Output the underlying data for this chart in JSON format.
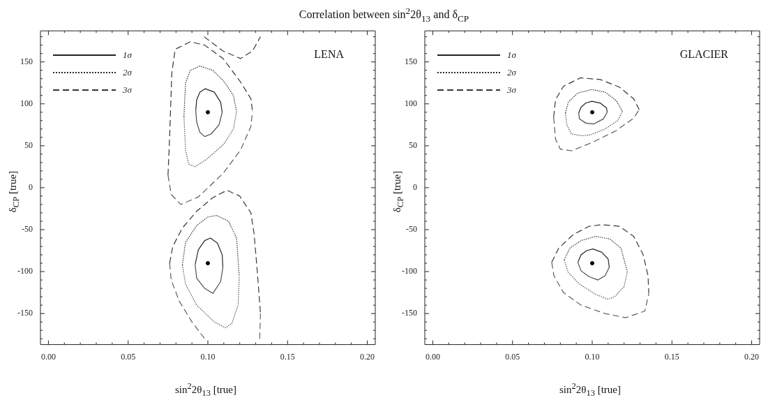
{
  "chart_data": [
    {
      "type": "line",
      "title": "Correlation between sin$^{2}$2θ$_{13}$ and δ$_{CP}$",
      "xlabel": "sin$^{2}$2θ$_{13}$ [true]",
      "ylabel": "δ$_{CP}$ [true]",
      "annotations": [
        "LENA"
      ],
      "legend": "top left",
      "grid": false,
      "xlim": [
        -0.005,
        0.205
      ],
      "ylim": [
        -187,
        187
      ],
      "xticks": [
        {
          "value": 0,
          "label": "0.00"
        },
        {
          "value": 0.01,
          "label": null
        },
        {
          "value": 0.02,
          "label": null
        },
        {
          "value": 0.03,
          "label": null
        },
        {
          "value": 0.04,
          "label": null
        },
        {
          "value": 0.05,
          "label": "0.05"
        },
        {
          "value": 0.06,
          "label": null
        },
        {
          "value": 0.07,
          "label": null
        },
        {
          "value": 0.08,
          "label": null
        },
        {
          "value": 0.09,
          "label": null
        },
        {
          "value": 0.1,
          "label": "0.10"
        },
        {
          "value": 0.11,
          "label": null
        },
        {
          "value": 0.12,
          "label": null
        },
        {
          "value": 0.13,
          "label": null
        },
        {
          "value": 0.14,
          "label": null
        },
        {
          "value": 0.15,
          "label": "0.15"
        },
        {
          "value": 0.16,
          "label": null
        },
        {
          "value": 0.17,
          "label": null
        },
        {
          "value": 0.18,
          "label": null
        },
        {
          "value": 0.19,
          "label": null
        },
        {
          "value": 0.2,
          "label": "0.20"
        }
      ],
      "yticks": [
        {
          "value": -180,
          "label": null
        },
        {
          "value": -170,
          "label": null
        },
        {
          "value": -160,
          "label": null
        },
        -150,
        {
          "value": -140,
          "label": null
        },
        {
          "value": -130,
          "label": null
        },
        {
          "value": -120,
          "label": null
        },
        {
          "value": -110,
          "label": null
        },
        -100,
        {
          "value": -90,
          "label": null
        },
        {
          "value": -80,
          "label": null
        },
        {
          "value": -70,
          "label": null
        },
        {
          "value": -60,
          "label": null
        },
        -50,
        {
          "value": -40,
          "label": null
        },
        {
          "value": -30,
          "label": null
        },
        {
          "value": -20,
          "label": null
        },
        {
          "value": -10,
          "label": null
        },
        0,
        {
          "value": 10,
          "label": null
        },
        {
          "value": 20,
          "label": null
        },
        {
          "value": 30,
          "label": null
        },
        {
          "value": 40,
          "label": null
        },
        50,
        {
          "value": 60,
          "label": null
        },
        {
          "value": 70,
          "label": null
        },
        {
          "value": 80,
          "label": null
        },
        {
          "value": 90,
          "label": null
        },
        100,
        {
          "value": 110,
          "label": null
        },
        {
          "value": 120,
          "label": null
        },
        {
          "value": 130,
          "label": null
        },
        {
          "value": 140,
          "label": null
        },
        150,
        {
          "value": 160,
          "label": null
        },
        {
          "value": 170,
          "label": null
        },
        {
          "value": 180,
          "label": null
        }
      ],
      "series": [
        {
          "name": "1σ",
          "color": "#222222",
          "line_style": "solid",
          "x": [
            0.0924,
            0.093,
            0.095,
            0.0984,
            0.104,
            0.108,
            0.109
          ],
          "values": [
            92,
            105,
            114,
            118,
            114,
            102,
            90
          ]
        },
        {
          "color": "#4a4a4a",
          "line_style": "solid",
          "x": [
            0.0924,
            0.093,
            0.095,
            0.098,
            0.102,
            0.107,
            0.109
          ],
          "values": [
            92,
            78,
            66,
            61,
            64,
            75,
            90
          ]
        },
        {
          "color": "#262626",
          "line_style": "solid",
          "x": [
            0.092,
            0.094,
            0.098,
            0.1016,
            0.106,
            0.109,
            0.1094
          ],
          "values": [
            -92,
            -74,
            -63,
            -60,
            -66,
            -80,
            -95
          ]
        },
        {
          "color": "#4e4e4e",
          "line_style": "solid",
          "x": [
            0.092,
            0.093,
            0.098,
            0.1031,
            0.108,
            0.1094
          ],
          "values": [
            -92,
            -108,
            -120,
            -126,
            -112,
            -95
          ]
        },
        {
          "name": "2σ",
          "color": "#2a2a2a",
          "line_style": "dotted",
          "x": [
            0.085,
            0.086,
            0.089,
            0.095,
            0.103,
            0.11,
            0.116,
            0.118
          ],
          "values": [
            85,
            125,
            140,
            145,
            140,
            127,
            110,
            91
          ]
        },
        {
          "color": "#525252",
          "line_style": "dotted",
          "x": [
            0.085,
            0.086,
            0.088,
            0.092,
            0.1,
            0.11,
            0.116,
            0.118
          ],
          "values": [
            85,
            45,
            28,
            25,
            35,
            52,
            70,
            91
          ]
        },
        {
          "color": "#2e2e2e",
          "line_style": "dotted",
          "x": [
            0.084,
            0.086,
            0.093,
            0.1,
            0.1055,
            0.113,
            0.118,
            0.1197
          ],
          "values": [
            -92,
            -65,
            -45,
            -35,
            -33,
            -40,
            -60,
            -106
          ]
        },
        {
          "color": "#565656",
          "line_style": "dotted",
          "x": [
            0.084,
            0.086,
            0.093,
            0.104,
            0.111,
            0.115,
            0.119,
            0.1197
          ],
          "values": [
            -92,
            -115,
            -140,
            -160,
            -167,
            -162,
            -140,
            -106
          ]
        },
        {
          "name": "3σ",
          "color": "#333333",
          "line_style": "dashed",
          "x": [
            0.075,
            0.076,
            0.0774,
            0.0795,
            0.089,
            0.098,
            0.1095,
            0.1205,
            0.127,
            0.128
          ],
          "values": [
            15,
            60,
            137,
            165,
            174,
            170,
            154,
            126,
            106,
            91
          ]
        },
        {
          "color": "#5b5b5b",
          "line_style": "dashed",
          "x": [
            0.075,
            0.077,
            0.083,
            0.094,
            0.1095,
            0.1205,
            0.127,
            0.128
          ],
          "values": [
            15,
            -8,
            -20,
            -11,
            17,
            45,
            73,
            91
          ]
        },
        {
          "color": "#3a3a3a",
          "line_style": "dashed",
          "x": [
            0.0976,
            0.1095,
            0.1205,
            0.128,
            0.133
          ],
          "values": [
            180,
            163,
            154,
            163,
            180
          ]
        },
        {
          "color": "#5f5f5f",
          "line_style": "dashed",
          "x": [
            0.076,
            0.077,
            0.082,
            0.09,
            0.098
          ],
          "values": [
            -90,
            -110,
            -135,
            -160,
            -180
          ]
        },
        {
          "color": "#373737",
          "line_style": "dashed",
          "x": [
            0.076,
            0.078,
            0.084,
            0.093,
            0.103,
            0.112,
            0.12,
            0.127,
            0.129,
            0.131,
            0.133
          ],
          "values": [
            -90,
            -70,
            -48,
            -28,
            -12,
            -3,
            -10,
            -30,
            -55,
            -100,
            -150
          ]
        },
        {
          "color": "#636363",
          "line_style": "dashed",
          "x": [
            0.1325,
            0.133
          ],
          "values": [
            -180,
            -150
          ]
        },
        {
          "type": "scatter",
          "color": "#000000",
          "marker": "circle",
          "x": [
            0.1,
            0.1
          ],
          "values": [
            90,
            -90
          ]
        }
      ]
    },
    {
      "type": "line",
      "xlabel": "sin$^{2}$2θ$_{13}$ [true]",
      "ylabel": "δ$_{CP}$ [true]",
      "annotations": [
        "GLACIER"
      ],
      "legend": "top left",
      "grid": false,
      "xlim": [
        -0.005,
        0.205
      ],
      "ylim": [
        -187,
        187
      ],
      "xticks": [
        {
          "value": 0,
          "label": "0.00"
        },
        {
          "value": 0.01,
          "label": null
        },
        {
          "value": 0.02,
          "label": null
        },
        {
          "value": 0.03,
          "label": null
        },
        {
          "value": 0.04,
          "label": null
        },
        {
          "value": 0.05,
          "label": "0.05"
        },
        {
          "value": 0.06,
          "label": null
        },
        {
          "value": 0.07,
          "label": null
        },
        {
          "value": 0.08,
          "label": null
        },
        {
          "value": 0.09,
          "label": null
        },
        {
          "value": 0.1,
          "label": "0.10"
        },
        {
          "value": 0.11,
          "label": null
        },
        {
          "value": 0.12,
          "label": null
        },
        {
          "value": 0.13,
          "label": null
        },
        {
          "value": 0.14,
          "label": null
        },
        {
          "value": 0.15,
          "label": "0.15"
        },
        {
          "value": 0.16,
          "label": null
        },
        {
          "value": 0.17,
          "label": null
        },
        {
          "value": 0.18,
          "label": null
        },
        {
          "value": 0.19,
          "label": null
        },
        {
          "value": 0.2,
          "label": "0.20"
        }
      ],
      "yticks": [
        {
          "value": -180,
          "label": null
        },
        {
          "value": -170,
          "label": null
        },
        {
          "value": -160,
          "label": null
        },
        -150,
        {
          "value": -140,
          "label": null
        },
        {
          "value": -130,
          "label": null
        },
        {
          "value": -120,
          "label": null
        },
        {
          "value": -110,
          "label": null
        },
        -100,
        {
          "value": -90,
          "label": null
        },
        {
          "value": -80,
          "label": null
        },
        {
          "value": -70,
          "label": null
        },
        {
          "value": -60,
          "label": null
        },
        -50,
        {
          "value": -40,
          "label": null
        },
        {
          "value": -30,
          "label": null
        },
        {
          "value": -20,
          "label": null
        },
        {
          "value": -10,
          "label": null
        },
        0,
        {
          "value": 10,
          "label": null
        },
        {
          "value": 20,
          "label": null
        },
        {
          "value": 30,
          "label": null
        },
        {
          "value": 40,
          "label": null
        },
        50,
        {
          "value": 60,
          "label": null
        },
        {
          "value": 70,
          "label": null
        },
        {
          "value": 80,
          "label": null
        },
        {
          "value": 90,
          "label": null
        },
        100,
        {
          "value": 110,
          "label": null
        },
        {
          "value": 120,
          "label": null
        },
        {
          "value": 130,
          "label": null
        },
        {
          "value": 140,
          "label": null
        },
        150,
        {
          "value": 160,
          "label": null
        },
        {
          "value": 170,
          "label": null
        },
        {
          "value": 180,
          "label": null
        }
      ],
      "series": [
        {
          "name": "1σ",
          "color": "#222222",
          "line_style": "solid",
          "x": [
            0.0915,
            0.093,
            0.096,
            0.0998,
            0.105,
            0.109,
            0.1094
          ],
          "values": [
            89,
            96,
            101,
            103,
            101,
            95,
            90
          ]
        },
        {
          "color": "#4a4a4a",
          "line_style": "solid",
          "x": [
            0.0915,
            0.092,
            0.096,
            0.101,
            0.107,
            0.1094
          ],
          "values": [
            89,
            82,
            77,
            76,
            82,
            90
          ]
        },
        {
          "color": "#262626",
          "line_style": "solid",
          "x": [
            0.091,
            0.093,
            0.0965,
            0.1005,
            0.106,
            0.11,
            0.1107
          ],
          "values": [
            -89,
            -80,
            -75,
            -73,
            -77,
            -85,
            -95
          ]
        },
        {
          "color": "#4e4e4e",
          "line_style": "solid",
          "x": [
            0.091,
            0.093,
            0.098,
            0.1036,
            0.108,
            0.1107
          ],
          "values": [
            -89,
            -99,
            -106,
            -110,
            -105,
            -95
          ]
        },
        {
          "name": "2σ",
          "color": "#2a2a2a",
          "line_style": "dotted",
          "x": [
            0.0832,
            0.085,
            0.091,
            0.0998,
            0.108,
            0.115,
            0.119
          ],
          "values": [
            89,
            102,
            113,
            117,
            114,
            104,
            91
          ]
        },
        {
          "color": "#525252",
          "line_style": "dotted",
          "x": [
            0.0832,
            0.084,
            0.087,
            0.0934,
            0.099,
            0.108,
            0.116,
            0.119
          ],
          "values": [
            89,
            75,
            64,
            62,
            63,
            70,
            80,
            91
          ]
        },
        {
          "color": "#2e2e2e",
          "line_style": "dotted",
          "x": [
            0.0824,
            0.086,
            0.093,
            0.102,
            0.111,
            0.118,
            0.122
          ],
          "values": [
            -86,
            -72,
            -63,
            -58,
            -61,
            -72,
            -100
          ]
        },
        {
          "color": "#565656",
          "line_style": "dotted",
          "x": [
            0.0824,
            0.085,
            0.092,
            0.102,
            0.11,
            0.114,
            0.12,
            0.122
          ],
          "values": [
            -86,
            -101,
            -115,
            -127,
            -133,
            -130,
            -118,
            -100
          ]
        },
        {
          "name": "3σ",
          "color": "#333333",
          "line_style": "dashed",
          "x": [
            0.0758,
            0.077,
            0.082,
            0.0926,
            0.105,
            0.117,
            0.126,
            0.1295
          ],
          "values": [
            84,
            105,
            121,
            131,
            129,
            120,
            106,
            93
          ]
        },
        {
          "color": "#5b5b5b",
          "line_style": "dashed",
          "x": [
            0.0758,
            0.077,
            0.08,
            0.087,
            0.1,
            0.115,
            0.126,
            0.1295
          ],
          "values": [
            84,
            58,
            46,
            44,
            54,
            68,
            83,
            93
          ]
        },
        {
          "color": "#373737",
          "line_style": "dashed",
          "x": [
            0.0746,
            0.079,
            0.088,
            0.098,
            0.106,
            0.117,
            0.126,
            0.132,
            0.135,
            0.1355
          ],
          "values": [
            -89,
            -72,
            -56,
            -46,
            -44,
            -46,
            -58,
            -80,
            -105,
            -126
          ]
        },
        {
          "color": "#5f5f5f",
          "line_style": "dashed",
          "x": [
            0.0746,
            0.076,
            0.082,
            0.093,
            0.108,
            0.121,
            0.133,
            0.1355
          ],
          "values": [
            -89,
            -105,
            -125,
            -140,
            -150,
            -155,
            -147,
            -126
          ]
        },
        {
          "type": "scatter",
          "color": "#000000",
          "marker": "circle",
          "x": [
            0.1,
            0.1
          ],
          "values": [
            90,
            -90
          ]
        }
      ]
    }
  ]
}
